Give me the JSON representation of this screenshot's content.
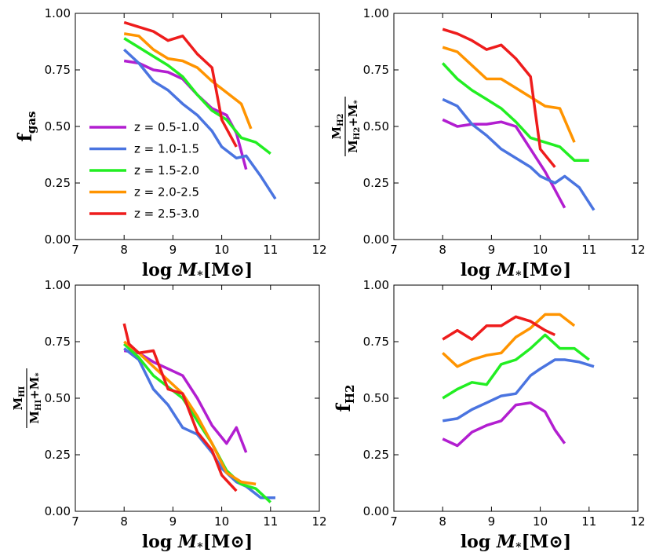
{
  "colors": {
    "z1": "#b21ed0",
    "z2": "#4a74e0",
    "z3": "#22ee22",
    "z4": "#ff9400",
    "z5": "#ee1c1c"
  },
  "legend": [
    {
      "key": "z1",
      "label": "z = 0.5-1.0"
    },
    {
      "key": "z2",
      "label": "z = 1.0-1.5"
    },
    {
      "key": "z3",
      "label": "z = 1.5-2.0"
    },
    {
      "key": "z4",
      "label": "z = 2.0-2.5"
    },
    {
      "key": "z5",
      "label": "z = 2.5-3.0"
    }
  ],
  "chart_data": [
    {
      "type": "line",
      "id": "fgas",
      "title": "",
      "xlabel": "log M*[M⊙]",
      "ylabel": "f_gas",
      "ylabel_text": {
        "main": "f",
        "sub": "gas"
      },
      "xlim": [
        7,
        12
      ],
      "ylim": [
        0,
        1
      ],
      "xticks": [
        "7",
        "8",
        "9",
        "10",
        "11",
        "12"
      ],
      "yticks": [
        "0.00",
        "0.25",
        "0.50",
        "0.75",
        "1.00"
      ],
      "legend_position": "lower-left",
      "series": [
        {
          "name": "z = 0.5-1.0",
          "key": "z1",
          "x": [
            8.0,
            8.3,
            8.6,
            8.9,
            9.2,
            9.5,
            9.8,
            10.1,
            10.3,
            10.5
          ],
          "y": [
            0.79,
            0.78,
            0.75,
            0.74,
            0.71,
            0.64,
            0.58,
            0.55,
            0.47,
            0.31
          ]
        },
        {
          "name": "z = 1.0-1.5",
          "key": "z2",
          "x": [
            8.0,
            8.3,
            8.6,
            8.9,
            9.2,
            9.5,
            9.8,
            10.0,
            10.3,
            10.5,
            10.8,
            11.1
          ],
          "y": [
            0.84,
            0.78,
            0.7,
            0.66,
            0.6,
            0.55,
            0.48,
            0.41,
            0.36,
            0.37,
            0.28,
            0.18
          ]
        },
        {
          "name": "z = 1.5-2.0",
          "key": "z3",
          "x": [
            8.0,
            8.3,
            8.6,
            8.9,
            9.2,
            9.5,
            9.8,
            10.1,
            10.4,
            10.7,
            11.0
          ],
          "y": [
            0.89,
            0.85,
            0.81,
            0.77,
            0.72,
            0.64,
            0.57,
            0.53,
            0.45,
            0.43,
            0.38
          ]
        },
        {
          "name": "z = 2.0-2.5",
          "key": "z4",
          "x": [
            8.0,
            8.3,
            8.6,
            8.9,
            9.2,
            9.5,
            9.8,
            10.1,
            10.4,
            10.6
          ],
          "y": [
            0.91,
            0.9,
            0.84,
            0.8,
            0.79,
            0.76,
            0.7,
            0.65,
            0.6,
            0.49
          ]
        },
        {
          "name": "z = 2.5-3.0",
          "key": "z5",
          "x": [
            8.0,
            8.3,
            8.6,
            8.9,
            9.2,
            9.5,
            9.8,
            10.0,
            10.3
          ],
          "y": [
            0.96,
            0.94,
            0.92,
            0.88,
            0.9,
            0.82,
            0.76,
            0.53,
            0.41
          ]
        }
      ]
    },
    {
      "type": "line",
      "id": "mh2",
      "title": "",
      "xlabel": "log M*[M⊙]",
      "ylabel": "M_H2 / (M_H2 + M*)",
      "ylabel_text": {
        "num": "M",
        "num_sub": "H2",
        "den": "M",
        "den_sub": "H2",
        "den_rest": "+M",
        "den_rest_sub": "*"
      },
      "xlim": [
        7,
        12
      ],
      "ylim": [
        0,
        1
      ],
      "xticks": [
        "7",
        "8",
        "9",
        "10",
        "11",
        "12"
      ],
      "yticks": [
        "0.00",
        "0.25",
        "0.50",
        "0.75",
        "1.00"
      ],
      "series": [
        {
          "name": "z = 0.5-1.0",
          "key": "z1",
          "x": [
            8.0,
            8.3,
            8.6,
            8.9,
            9.2,
            9.5,
            9.8,
            10.1,
            10.3,
            10.5
          ],
          "y": [
            0.53,
            0.5,
            0.51,
            0.51,
            0.52,
            0.5,
            0.4,
            0.3,
            0.22,
            0.14
          ]
        },
        {
          "name": "z = 1.0-1.5",
          "key": "z2",
          "x": [
            8.0,
            8.3,
            8.6,
            8.9,
            9.2,
            9.5,
            9.8,
            10.0,
            10.3,
            10.5,
            10.8,
            11.1
          ],
          "y": [
            0.62,
            0.59,
            0.51,
            0.46,
            0.4,
            0.36,
            0.32,
            0.28,
            0.25,
            0.28,
            0.23,
            0.13
          ]
        },
        {
          "name": "z = 1.5-2.0",
          "key": "z3",
          "x": [
            8.0,
            8.3,
            8.6,
            8.9,
            9.2,
            9.5,
            9.8,
            10.1,
            10.4,
            10.7,
            11.0
          ],
          "y": [
            0.78,
            0.71,
            0.66,
            0.62,
            0.58,
            0.52,
            0.45,
            0.43,
            0.41,
            0.35,
            0.35
          ]
        },
        {
          "name": "z = 2.0-2.5",
          "key": "z4",
          "x": [
            8.0,
            8.3,
            8.6,
            8.9,
            9.2,
            9.5,
            9.8,
            10.1,
            10.4,
            10.7
          ],
          "y": [
            0.85,
            0.83,
            0.77,
            0.71,
            0.71,
            0.67,
            0.63,
            0.59,
            0.58,
            0.43
          ]
        },
        {
          "name": "z = 2.5-3.0",
          "key": "z5",
          "x": [
            8.0,
            8.3,
            8.6,
            8.9,
            9.2,
            9.5,
            9.8,
            10.0,
            10.3
          ],
          "y": [
            0.93,
            0.91,
            0.88,
            0.84,
            0.86,
            0.8,
            0.72,
            0.4,
            0.32
          ]
        }
      ]
    },
    {
      "type": "line",
      "id": "mhi",
      "title": "",
      "xlabel": "log M*[M⊙]",
      "ylabel": "M_HI / (M_HI + M*)",
      "ylabel_text": {
        "num": "M",
        "num_sub": "HI",
        "den": "M",
        "den_sub": "HI",
        "den_rest": "+M",
        "den_rest_sub": "*"
      },
      "xlim": [
        7,
        12
      ],
      "ylim": [
        0,
        1
      ],
      "xticks": [
        "7",
        "8",
        "9",
        "10",
        "11",
        "12"
      ],
      "yticks": [
        "0.00",
        "0.25",
        "0.50",
        "0.75",
        "1.00"
      ],
      "series": [
        {
          "name": "z = 0.5-1.0",
          "key": "z1",
          "x": [
            8.0,
            8.3,
            8.6,
            8.9,
            9.2,
            9.5,
            9.8,
            10.1,
            10.3,
            10.5
          ],
          "y": [
            0.71,
            0.7,
            0.66,
            0.63,
            0.6,
            0.5,
            0.38,
            0.3,
            0.37,
            0.26
          ]
        },
        {
          "name": "z = 1.0-1.5",
          "key": "z2",
          "x": [
            8.0,
            8.3,
            8.6,
            8.9,
            9.2,
            9.5,
            9.8,
            10.0,
            10.3,
            10.5,
            10.8,
            11.1
          ],
          "y": [
            0.72,
            0.67,
            0.54,
            0.47,
            0.37,
            0.34,
            0.26,
            0.19,
            0.13,
            0.11,
            0.06,
            0.06
          ]
        },
        {
          "name": "z = 1.5-2.0",
          "key": "z3",
          "x": [
            8.0,
            8.3,
            8.6,
            8.9,
            9.2,
            9.5,
            9.8,
            10.1,
            10.4,
            10.7,
            11.0
          ],
          "y": [
            0.74,
            0.68,
            0.6,
            0.55,
            0.5,
            0.4,
            0.3,
            0.18,
            0.12,
            0.1,
            0.04
          ]
        },
        {
          "name": "z = 2.0-2.5",
          "key": "z4",
          "x": [
            8.0,
            8.3,
            8.6,
            8.9,
            9.2,
            9.5,
            9.8,
            10.1,
            10.4,
            10.7
          ],
          "y": [
            0.75,
            0.7,
            0.64,
            0.58,
            0.52,
            0.42,
            0.3,
            0.17,
            0.13,
            0.12
          ]
        },
        {
          "name": "z = 2.5-3.0",
          "key": "z5",
          "x": [
            8.0,
            8.1,
            8.3,
            8.6,
            8.9,
            9.2,
            9.5,
            9.8,
            10.0,
            10.3
          ],
          "y": [
            0.83,
            0.74,
            0.7,
            0.71,
            0.54,
            0.52,
            0.35,
            0.27,
            0.16,
            0.09
          ]
        }
      ]
    },
    {
      "type": "line",
      "id": "fh2",
      "title": "",
      "xlabel": "log M*[M⊙]",
      "ylabel": "f_H2",
      "ylabel_text": {
        "main": "f",
        "sub": "H2"
      },
      "xlim": [
        7,
        12
      ],
      "ylim": [
        0,
        1
      ],
      "xticks": [
        "7",
        "8",
        "9",
        "10",
        "11",
        "12"
      ],
      "yticks": [
        "0.00",
        "0.25",
        "0.50",
        "0.75",
        "1.00"
      ],
      "series": [
        {
          "name": "z = 0.5-1.0",
          "key": "z1",
          "x": [
            8.0,
            8.3,
            8.6,
            8.9,
            9.2,
            9.5,
            9.8,
            10.1,
            10.3,
            10.5
          ],
          "y": [
            0.32,
            0.29,
            0.35,
            0.38,
            0.4,
            0.47,
            0.48,
            0.44,
            0.36,
            0.3
          ]
        },
        {
          "name": "z = 1.0-1.5",
          "key": "z2",
          "x": [
            8.0,
            8.3,
            8.6,
            8.9,
            9.2,
            9.5,
            9.8,
            10.0,
            10.3,
            10.5,
            10.8,
            11.1
          ],
          "y": [
            0.4,
            0.41,
            0.45,
            0.48,
            0.51,
            0.52,
            0.6,
            0.63,
            0.67,
            0.67,
            0.66,
            0.64
          ]
        },
        {
          "name": "z = 1.5-2.0",
          "key": "z3",
          "x": [
            8.0,
            8.3,
            8.6,
            8.9,
            9.2,
            9.5,
            9.8,
            10.1,
            10.4,
            10.7,
            11.0
          ],
          "y": [
            0.5,
            0.54,
            0.57,
            0.56,
            0.65,
            0.67,
            0.72,
            0.78,
            0.72,
            0.72,
            0.67
          ]
        },
        {
          "name": "z = 2.0-2.5",
          "key": "z4",
          "x": [
            8.0,
            8.3,
            8.6,
            8.9,
            9.2,
            9.5,
            9.8,
            10.1,
            10.4,
            10.7
          ],
          "y": [
            0.7,
            0.64,
            0.67,
            0.69,
            0.7,
            0.77,
            0.81,
            0.87,
            0.87,
            0.82
          ]
        },
        {
          "name": "z = 2.5-3.0",
          "key": "z5",
          "x": [
            8.0,
            8.3,
            8.6,
            8.9,
            9.2,
            9.5,
            9.8,
            10.1,
            10.3
          ],
          "y": [
            0.76,
            0.8,
            0.76,
            0.82,
            0.82,
            0.86,
            0.84,
            0.8,
            0.78
          ]
        }
      ]
    }
  ]
}
